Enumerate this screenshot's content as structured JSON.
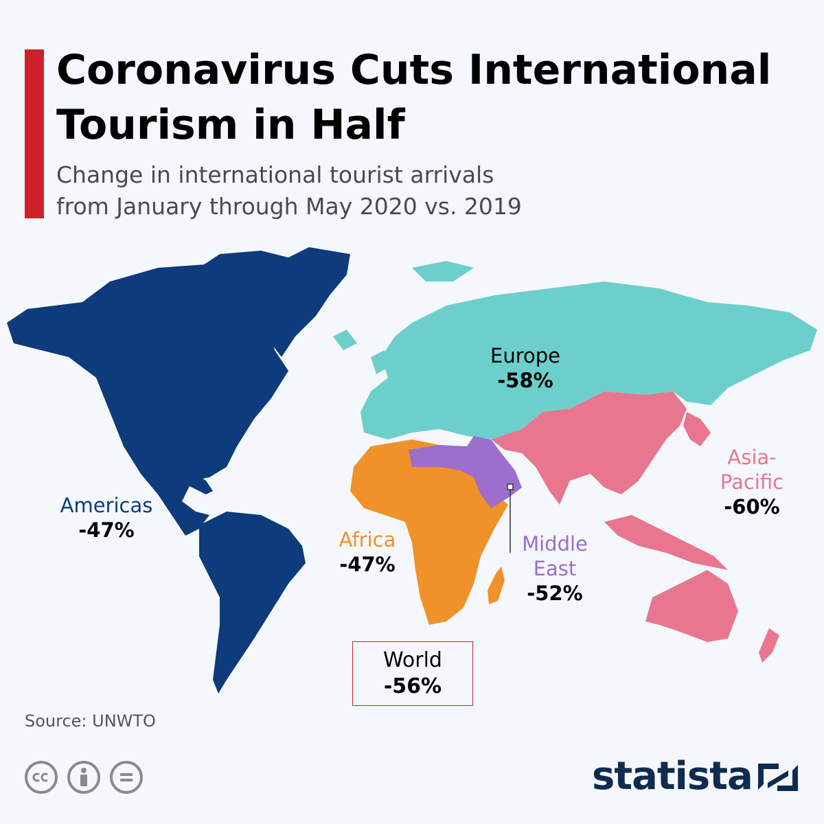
{
  "header": {
    "title_lines": [
      "Coronavirus Cuts International",
      "Tourism in Half"
    ],
    "subtitle_lines": [
      "Change in international tourist arrivals",
      "from January through May 2020 vs. 2019"
    ]
  },
  "chart_data": {
    "type": "map",
    "regions": [
      {
        "name": "Americas",
        "value": "-47%",
        "color": "#0d3b7c"
      },
      {
        "name": "Europe",
        "value": "-58%",
        "color": "#6dcfcb"
      },
      {
        "name": "Africa",
        "value": "-47%",
        "color": "#f0912a"
      },
      {
        "name_lines": [
          "Middle",
          "East"
        ],
        "value": "-52%",
        "color": "#9b6fcb"
      },
      {
        "name_lines": [
          "Asia-",
          "Pacific"
        ],
        "value": "-60%",
        "color": "#e8768e"
      }
    ],
    "world": {
      "name": "World",
      "value": "-56%"
    }
  },
  "footer": {
    "source": "Source: UNWTO",
    "brand": "statista",
    "license_icons": [
      "cc-icon",
      "attribution-icon",
      "no-derivatives-icon"
    ]
  },
  "colors": {
    "accent": "#d0202a",
    "background": "#f4f7fb",
    "brand": "#0f2b4f"
  }
}
